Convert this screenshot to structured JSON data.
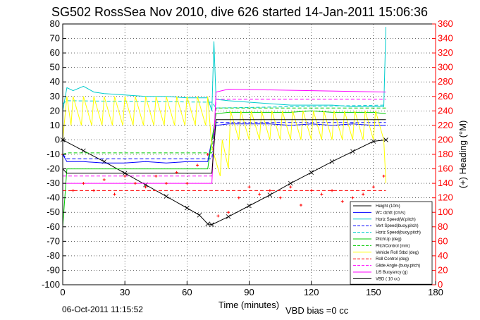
{
  "title": "SG502 RossSea Nov 2010, dive 626 started 14-Jan-2011 15:06:36",
  "footer_left": "06-Oct-2011 11:15:52",
  "footer_right": "VBD bias =0 cc",
  "colors": {
    "left_axis": "#000000",
    "right_axis": "#ff0000"
  },
  "chart_data": {
    "type": "line",
    "xlabel": "Time (minutes)",
    "ylabel_left": "",
    "ylabel_right": "(+) Heading (°M)",
    "xlim": [
      0,
      180
    ],
    "ylim": [
      -100,
      80
    ],
    "ylim_right": [
      0,
      360
    ],
    "xticks": [
      0,
      30,
      60,
      90,
      120,
      150,
      180
    ],
    "yticks": [
      -100,
      -90,
      -80,
      -70,
      -60,
      -50,
      -40,
      -30,
      -20,
      -10,
      0,
      10,
      20,
      30,
      40,
      50,
      60,
      70,
      80
    ],
    "yticks_right": [
      0,
      20,
      40,
      60,
      80,
      100,
      120,
      140,
      160,
      180,
      200,
      220,
      240,
      260,
      280,
      300,
      320,
      340,
      360
    ],
    "grid": true,
    "legend_position": "bottom-right",
    "series": [
      {
        "name": "Height (10m)",
        "color": "#000000",
        "style": "solid",
        "x": [
          0,
          10,
          20,
          30,
          40,
          50,
          60,
          66,
          70,
          72,
          80,
          90,
          100,
          110,
          120,
          130,
          140,
          150,
          156
        ],
        "y": [
          0,
          -7.5,
          -15,
          -23,
          -31,
          -39,
          -47,
          -52,
          -58,
          -58.5,
          -53,
          -45.5,
          -38,
          -30,
          -22.5,
          -15,
          -8,
          -1,
          0
        ]
      },
      {
        "name": "W= dz/dt (cm/s)",
        "color": "#0000ff",
        "style": "solid",
        "x": [
          0,
          2,
          10,
          20,
          30,
          40,
          50,
          60,
          70,
          72,
          74,
          80,
          90,
          100,
          110,
          120,
          130,
          140,
          150,
          156
        ],
        "y": [
          -10,
          -15,
          -15,
          -16,
          -16,
          -15,
          -16,
          -15,
          -15,
          0,
          10,
          11,
          11,
          11,
          10,
          11,
          10,
          11,
          10,
          10
        ]
      },
      {
        "name": "Horiz Speed(W,pitch)",
        "color": "#00cccc",
        "style": "solid",
        "x": [
          0,
          2,
          5,
          10,
          15,
          20,
          30,
          40,
          50,
          60,
          70,
          72,
          73,
          74,
          80,
          90,
          100,
          110,
          120,
          130,
          140,
          150,
          155,
          156
        ],
        "y": [
          20,
          36,
          34,
          37,
          33,
          32,
          31,
          30,
          30,
          29,
          29,
          20,
          68,
          28,
          27,
          26,
          25,
          24,
          24,
          24,
          23,
          23,
          23,
          78
        ]
      },
      {
        "name": "Vert Speed(buoy,pitch)",
        "color": "#0000ff",
        "style": "dashed",
        "x": [
          0,
          2,
          72,
          74,
          156
        ],
        "y": [
          -10,
          -13,
          -13,
          12,
          12
        ]
      },
      {
        "name": "Horiz Speed(buoy,pitch)",
        "color": "#00cccc",
        "style": "dashed",
        "x": [
          0,
          2,
          72,
          74,
          156
        ],
        "y": [
          25,
          27,
          26,
          22,
          24
        ]
      },
      {
        "name": "PitchUp (deg)",
        "color": "#00cc00",
        "style": "solid",
        "x": [
          0,
          2,
          10,
          20,
          30,
          40,
          50,
          60,
          70,
          72,
          74,
          80,
          90,
          100,
          110,
          120,
          130,
          140,
          150,
          156
        ],
        "y": [
          -60,
          -20,
          -20,
          -20,
          -20,
          -20,
          -20,
          -20,
          -20,
          0,
          18,
          19,
          19,
          19,
          19,
          20,
          19,
          19,
          19,
          18
        ]
      },
      {
        "name": "PitchControl (mm)",
        "color": "#00cc00",
        "style": "dashed",
        "x": [
          0,
          2,
          72,
          74,
          156
        ],
        "y": [
          -10,
          -9,
          -9,
          22,
          22
        ]
      },
      {
        "name": "Vehicle Roll Stbd (deg)",
        "color": "#ffff00",
        "style": "solid",
        "x": [
          0,
          2,
          4,
          5,
          9,
          10,
          14,
          15,
          19,
          20,
          24,
          25,
          29,
          30,
          34,
          35,
          39,
          40,
          44,
          45,
          49,
          50,
          54,
          55,
          59,
          60,
          64,
          65,
          69,
          70,
          72,
          76,
          77,
          80,
          81,
          85,
          86,
          90,
          91,
          95,
          96,
          100,
          101,
          105,
          106,
          110,
          111,
          115,
          116,
          120,
          121,
          125,
          126,
          130,
          131,
          135,
          136,
          140,
          141,
          145,
          146,
          150,
          151,
          155,
          156
        ],
        "y": [
          0,
          30,
          10,
          30,
          10,
          30,
          10,
          30,
          10,
          30,
          10,
          30,
          10,
          30,
          10,
          30,
          10,
          30,
          10,
          30,
          10,
          30,
          10,
          30,
          10,
          30,
          10,
          30,
          10,
          30,
          -5,
          -25,
          0,
          -20,
          20,
          0,
          20,
          0,
          20,
          0,
          20,
          0,
          20,
          0,
          20,
          0,
          20,
          0,
          20,
          0,
          20,
          0,
          20,
          0,
          20,
          0,
          20,
          0,
          20,
          0,
          20,
          0,
          20,
          0,
          -30
        ]
      },
      {
        "name": "Roll Control (deg)",
        "color": "#ff0000",
        "style": "dashed",
        "x": [
          0,
          72,
          74,
          156
        ],
        "y": [
          -35,
          -35,
          -35,
          -35
        ]
      },
      {
        "name": "Glide Angle (buoy,pitch)",
        "color": "#ff00ff",
        "style": "dashed",
        "x": [
          0,
          2,
          72,
          74,
          156
        ],
        "y": [
          -25,
          -25,
          -25,
          28,
          28
        ]
      },
      {
        "name": "1/5 Buoyancy (g)",
        "color": "#ff00ff",
        "style": "solid",
        "x": [
          0,
          2,
          72,
          74,
          80,
          156
        ],
        "y": [
          -30,
          -30,
          -30,
          33,
          35,
          33
        ]
      },
      {
        "name": "VBD ( 10 cc)",
        "color": "#000000",
        "style": "solid",
        "x": [
          0,
          2,
          72,
          74,
          156
        ],
        "y": [
          -20,
          -23,
          -23,
          14,
          14
        ]
      },
      {
        "name": "Heading (°M)",
        "color": "#ff0000",
        "style": "points",
        "axis": "right",
        "x": [
          0,
          5,
          10,
          15,
          20,
          25,
          30,
          35,
          40,
          45,
          50,
          55,
          60,
          65,
          70,
          75,
          80,
          85,
          90,
          95,
          100,
          105,
          110,
          115,
          120,
          125,
          130,
          135,
          140,
          145,
          150,
          155
        ],
        "y": [
          180,
          130,
          140,
          130,
          145,
          125,
          150,
          140,
          135,
          150,
          140,
          155,
          140,
          165,
          180,
          95,
          100,
          120,
          135,
          125,
          130,
          120,
          135,
          110,
          130,
          125,
          130,
          115,
          120,
          125,
          135,
          150
        ]
      }
    ]
  }
}
